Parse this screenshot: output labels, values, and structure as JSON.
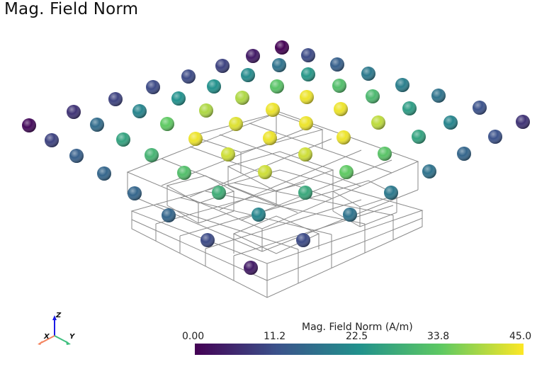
{
  "title": "Mag. Field Norm",
  "colorbar": {
    "title": "Mag. Field Norm (A/m)",
    "ticks": [
      "0.00",
      "11.2",
      "22.5",
      "33.8",
      "45.0"
    ],
    "min": 0,
    "max": 45,
    "colormap": [
      "#440154",
      "#3b528b",
      "#21918c",
      "#5ec962",
      "#fde725"
    ]
  },
  "axes": {
    "x": "X",
    "y": "Y",
    "z": "Z"
  },
  "colors": {
    "x_axis": "#f4845f",
    "y_axis": "#3fbf7f",
    "z_axis": "#1a1ae6",
    "grid": "#8a8a8a"
  }
}
